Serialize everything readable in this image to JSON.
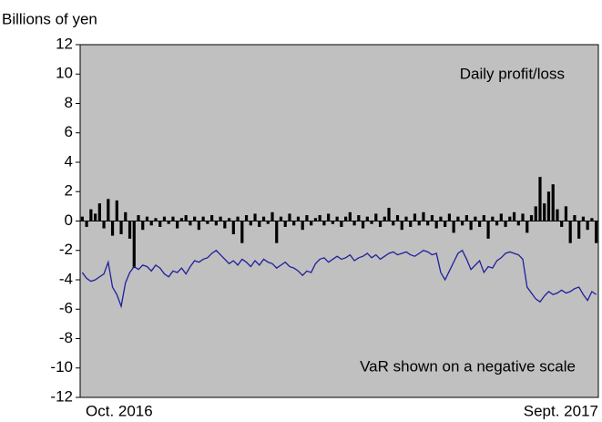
{
  "chart_data": {
    "type": "bar_line",
    "ylabel": "Billions of yen",
    "categories": [
      "Oct. 2016",
      null,
      null,
      null,
      null,
      null,
      null,
      null,
      null,
      null,
      null,
      null,
      null,
      null,
      null,
      null,
      null,
      null,
      null,
      null,
      null,
      null,
      null,
      null,
      null,
      null,
      null,
      null,
      null,
      null,
      null,
      null,
      null,
      null,
      null,
      null,
      null,
      null,
      null,
      null,
      null,
      null,
      null,
      null,
      null,
      null,
      null,
      null,
      null,
      null,
      null,
      null,
      null,
      null,
      null,
      null,
      null,
      null,
      null,
      null,
      null,
      null,
      null,
      null,
      null,
      null,
      null,
      null,
      null,
      null,
      null,
      null,
      null,
      null,
      null,
      null,
      null,
      null,
      null,
      null,
      null,
      null,
      null,
      null,
      null,
      null,
      null,
      null,
      null,
      null,
      null,
      null,
      null,
      null,
      null,
      null,
      null,
      null,
      null,
      null,
      null,
      null,
      null,
      null,
      null,
      null,
      null,
      null,
      null,
      null,
      null,
      null,
      null,
      null,
      null,
      null,
      null,
      null,
      null,
      "Sept. 2017"
    ],
    "series": [
      {
        "name": "Daily profit/loss",
        "type": "bar",
        "color": "#000000",
        "values": [
          0.3,
          -0.4,
          0.8,
          0.5,
          1.2,
          -0.5,
          1.5,
          -1.0,
          1.4,
          -0.9,
          0.6,
          -1.2,
          -3.2,
          0.4,
          -0.6,
          0.3,
          -0.3,
          0.2,
          -0.4,
          0.3,
          -0.2,
          0.3,
          -0.5,
          0.2,
          0.4,
          -0.3,
          0.3,
          -0.6,
          0.3,
          -0.2,
          0.4,
          -0.3,
          0.3,
          -0.5,
          0.2,
          -0.9,
          0.3,
          -1.5,
          0.4,
          -0.3,
          0.5,
          -0.4,
          0.3,
          -0.2,
          0.6,
          -1.5,
          0.3,
          -0.4,
          0.5,
          -0.3,
          0.3,
          -0.6,
          0.4,
          -0.3,
          0.2,
          0.4,
          -0.3,
          0.5,
          -0.2,
          0.3,
          -0.4,
          0.3,
          0.6,
          -0.3,
          0.4,
          -0.5,
          0.3,
          -0.2,
          0.5,
          -0.4,
          0.3,
          0.9,
          -0.3,
          0.4,
          -0.6,
          0.3,
          -0.4,
          0.5,
          -0.3,
          0.6,
          -0.3,
          0.4,
          -0.5,
          0.3,
          -0.4,
          0.5,
          -0.8,
          0.3,
          -0.3,
          0.4,
          -0.6,
          0.3,
          -0.4,
          0.4,
          -1.2,
          0.3,
          -0.3,
          0.5,
          -0.4,
          0.3,
          0.6,
          -0.3,
          0.5,
          -0.8,
          0.4,
          1.0,
          3.0,
          1.2,
          2.0,
          2.5,
          0.8,
          -0.4,
          1.0,
          -1.5,
          0.4,
          -1.2,
          0.3,
          -0.6,
          0.2,
          -1.5
        ]
      },
      {
        "name": "VaR shown on a negative scale",
        "type": "line",
        "color": "#1f1f9c",
        "values": [
          -3.5,
          -3.9,
          -4.1,
          -4.0,
          -3.8,
          -3.6,
          -2.8,
          -4.5,
          -5.0,
          -5.8,
          -4.2,
          -3.5,
          -3.1,
          -3.3,
          -3.0,
          -3.1,
          -3.4,
          -3.0,
          -3.2,
          -3.6,
          -3.8,
          -3.4,
          -3.5,
          -3.2,
          -3.6,
          -3.1,
          -2.7,
          -2.8,
          -2.6,
          -2.5,
          -2.2,
          -2.0,
          -2.3,
          -2.6,
          -2.9,
          -2.7,
          -3.0,
          -2.6,
          -2.8,
          -3.1,
          -2.7,
          -3.0,
          -2.6,
          -2.8,
          -2.9,
          -3.2,
          -3.0,
          -2.8,
          -3.1,
          -3.2,
          -3.4,
          -3.7,
          -3.4,
          -3.5,
          -2.9,
          -2.6,
          -2.5,
          -2.8,
          -2.6,
          -2.4,
          -2.6,
          -2.5,
          -2.3,
          -2.7,
          -2.5,
          -2.4,
          -2.2,
          -2.5,
          -2.3,
          -2.6,
          -2.4,
          -2.2,
          -2.1,
          -2.3,
          -2.2,
          -2.1,
          -2.3,
          -2.4,
          -2.2,
          -2.0,
          -2.1,
          -2.3,
          -2.2,
          -3.5,
          -4.0,
          -3.4,
          -2.8,
          -2.2,
          -2.0,
          -2.6,
          -3.3,
          -3.0,
          -2.7,
          -3.5,
          -3.1,
          -3.2,
          -2.7,
          -2.5,
          -2.2,
          -2.1,
          -2.2,
          -2.3,
          -2.6,
          -4.5,
          -4.9,
          -5.3,
          -5.5,
          -5.1,
          -4.8,
          -5.0,
          -4.9,
          -4.7,
          -4.9,
          -4.8,
          -4.6,
          -4.5,
          -5.0,
          -5.4,
          -4.8,
          -5.0
        ]
      }
    ],
    "ylim": [
      -12,
      12
    ],
    "yticks": [
      -12,
      -10,
      -8,
      -6,
      -4,
      -2,
      0,
      2,
      4,
      6,
      8,
      10,
      12
    ],
    "plot_background": "#c0c0c0"
  }
}
